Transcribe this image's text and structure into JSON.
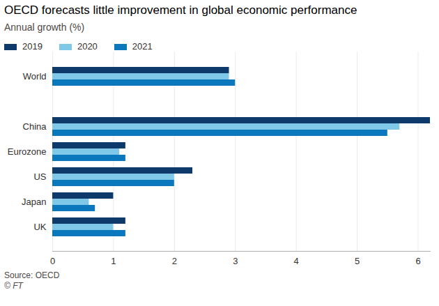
{
  "chart_data": {
    "type": "bar",
    "orientation": "horizontal",
    "title": "OECD forecasts little improvement in global economic performance",
    "subtitle": "Annual growth (%)",
    "categories": [
      "World",
      null,
      "China",
      "Eurozone",
      "US",
      "Japan",
      "UK"
    ],
    "series": [
      {
        "name": "2019",
        "color": "#0d3a6b",
        "values": [
          2.9,
          null,
          6.2,
          1.2,
          2.3,
          1.0,
          1.2
        ]
      },
      {
        "name": "2020",
        "color": "#80c8e8",
        "values": [
          2.9,
          null,
          5.7,
          1.1,
          2.0,
          0.6,
          1.0
        ]
      },
      {
        "name": "2021",
        "color": "#0b78be",
        "values": [
          3.0,
          null,
          5.5,
          1.2,
          2.0,
          0.7,
          1.2
        ]
      }
    ],
    "xlim": [
      0,
      6.2
    ],
    "xticks": [
      0,
      1,
      2,
      3,
      4,
      5,
      6
    ],
    "grid": true,
    "legend": "top-left",
    "source": "Source: OECD",
    "credit": "© FT"
  }
}
